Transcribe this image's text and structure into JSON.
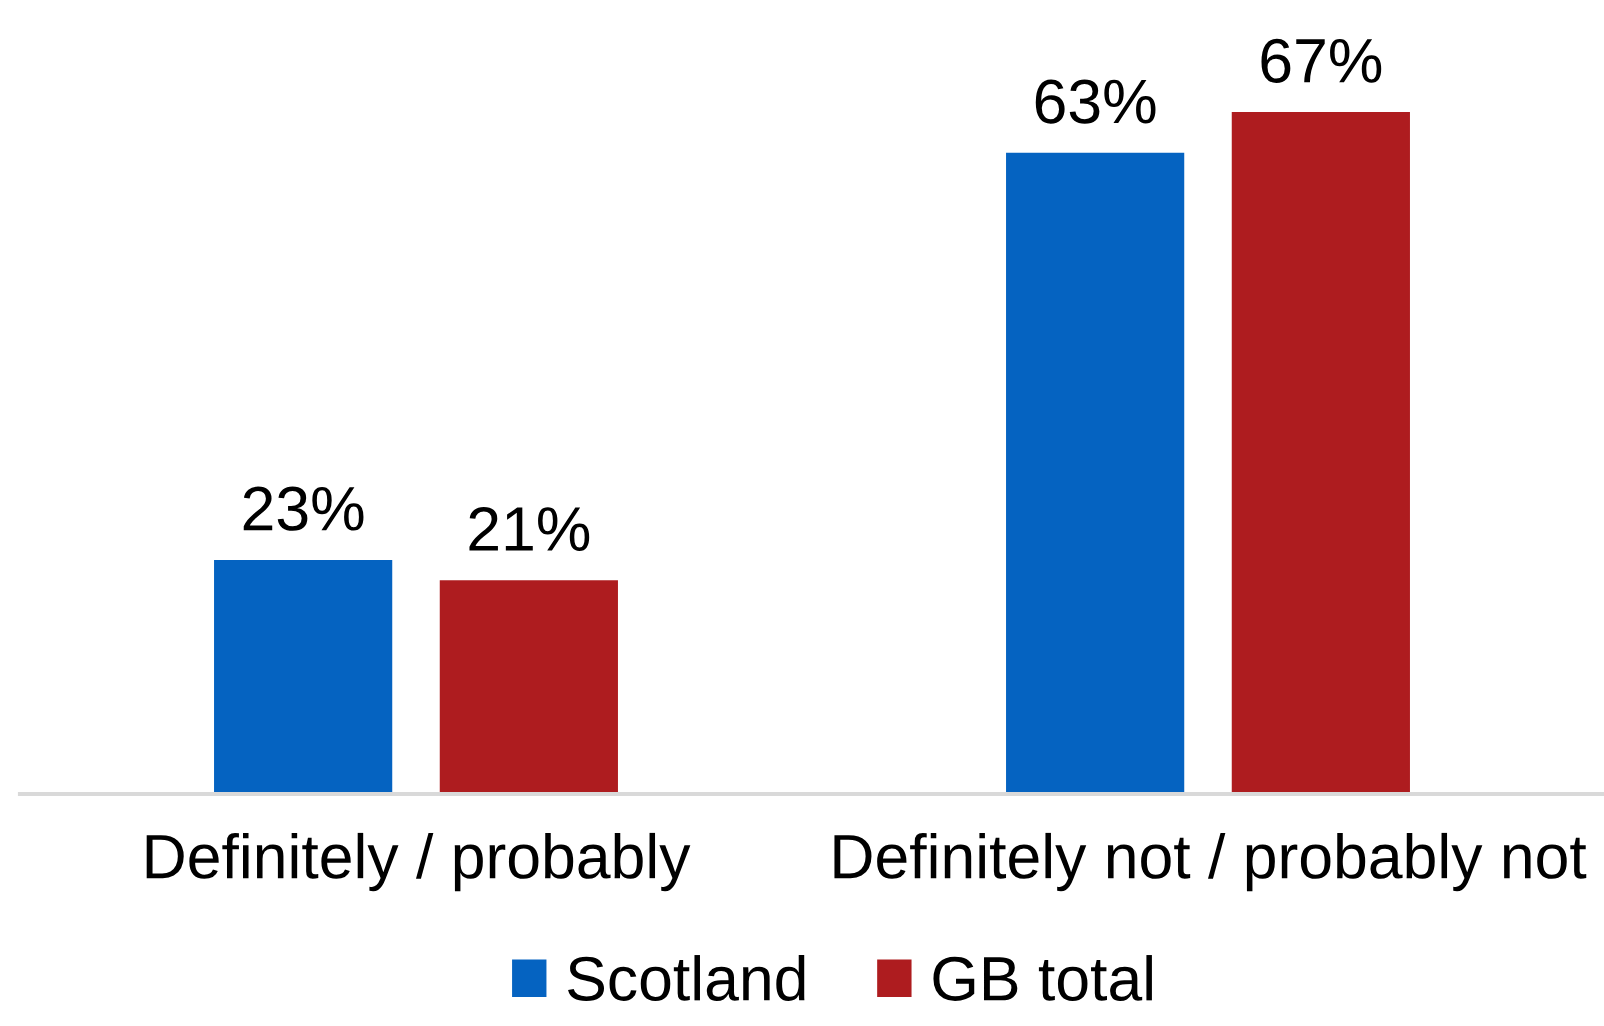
{
  "chart_data": {
    "type": "bar",
    "categories": [
      "Definitely / probably",
      "Definitely not / probably not"
    ],
    "series": [
      {
        "name": "Scotland",
        "color": "#0563c1",
        "values": [
          23,
          63
        ],
        "value_labels": [
          "23%",
          "63%"
        ]
      },
      {
        "name": "GB total",
        "color": "#ae1c1f",
        "values": [
          21,
          67
        ],
        "value_labels": [
          "21%",
          "67%"
        ]
      }
    ],
    "legend": "bottom"
  }
}
